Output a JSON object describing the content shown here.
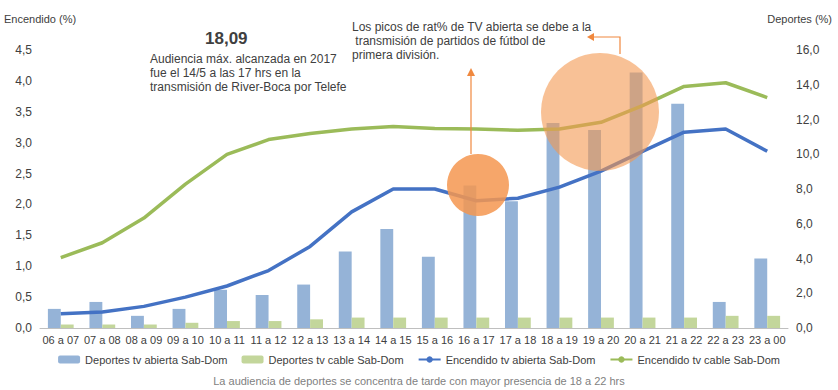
{
  "chart_data": {
    "type": "bar",
    "caption": "La audiencia de deportes se concentra de tarde con mayor presencia de 18 a 22 hrs",
    "annotations": [
      {
        "text": "18,09"
      },
      {
        "text": "Audiencia máx. alcanzada en 2017 fue el 14/5 a las 17 hrs en la transmisión de River-Boca por Telefe"
      },
      {
        "text": "Los picos de rat% de TV abierta se debe a la transmisión de partidos de fútbol de primera división."
      }
    ],
    "y_label": "Encendido (%)",
    "y2_label": "Deportes (%)",
    "categories": [
      "06 a 07",
      "07 a 08",
      "08 a 09",
      "09 a 10",
      "10 a 11",
      "11 a 12",
      "12 a 13",
      "13 a 14",
      "14 a 15",
      "15 a 16",
      "16 a 17",
      "17 a 18",
      "18 a 19",
      "19 a 20",
      "20 a 21",
      "21 a 22",
      "22 a 23",
      "23 a 00"
    ],
    "series": [
      {
        "name": "Deportes tv abierta Sab-Dom",
        "type": "bar",
        "axis": "y2",
        "color": "#95b3d7",
        "values": [
          1.1,
          1.5,
          0.7,
          1.1,
          2.2,
          1.9,
          2.5,
          4.4,
          5.7,
          4.1,
          8.2,
          7.3,
          11.8,
          11.4,
          14.7,
          12.9,
          1.5,
          4.0
        ]
      },
      {
        "name": "Deportes tv cable Sab-Dom",
        "type": "bar",
        "axis": "y2",
        "color": "#c3d69b",
        "values": [
          0.2,
          0.2,
          0.2,
          0.3,
          0.4,
          0.4,
          0.5,
          0.6,
          0.6,
          0.6,
          0.6,
          0.6,
          0.6,
          0.6,
          0.6,
          0.6,
          0.7,
          0.7
        ]
      },
      {
        "name": "Encendido tv abierta Sab-Dom",
        "type": "line",
        "color": "#4472c4",
        "values": [
          0.23,
          0.26,
          0.35,
          0.5,
          0.68,
          0.93,
          1.32,
          1.88,
          2.25,
          2.25,
          2.06,
          2.1,
          2.28,
          2.54,
          2.86,
          3.17,
          3.22,
          2.86
        ]
      },
      {
        "name": "Encendido tv cable Sab-Dom",
        "type": "line",
        "color": "#9bbb59",
        "values": [
          1.14,
          1.38,
          1.78,
          2.33,
          2.81,
          3.05,
          3.15,
          3.22,
          3.26,
          3.23,
          3.22,
          3.2,
          3.22,
          3.33,
          3.6,
          3.91,
          3.97,
          3.73
        ]
      }
    ],
    "ylim": [
      0,
      4.5
    ],
    "yticks": [
      {
        "value": 0,
        "label": "0,0"
      },
      {
        "value": 0.5,
        "label": "0,5"
      },
      {
        "value": 1,
        "label": "1,0"
      },
      {
        "value": 1.5,
        "label": "1,5"
      },
      {
        "value": 2,
        "label": "2,0"
      },
      {
        "value": 2.5,
        "label": "2,5"
      },
      {
        "value": 3,
        "label": "3,0"
      },
      {
        "value": 3.5,
        "label": "3,5"
      },
      {
        "value": 4,
        "label": "4,0"
      },
      {
        "value": 4.5,
        "label": "4,5"
      }
    ],
    "y2lim": [
      0,
      16
    ],
    "y2ticks": [
      {
        "value": 0,
        "label": "0,0"
      },
      {
        "value": 2,
        "label": "2,0"
      },
      {
        "value": 4,
        "label": "4,0"
      },
      {
        "value": 6,
        "label": "6,0"
      },
      {
        "value": 8,
        "label": "8,0"
      },
      {
        "value": 10,
        "label": "10,0"
      },
      {
        "value": 12,
        "label": "12,0"
      },
      {
        "value": 14,
        "label": "14,0"
      },
      {
        "value": 16,
        "label": "16,0"
      }
    ],
    "grid": false,
    "legend": "bottom"
  }
}
